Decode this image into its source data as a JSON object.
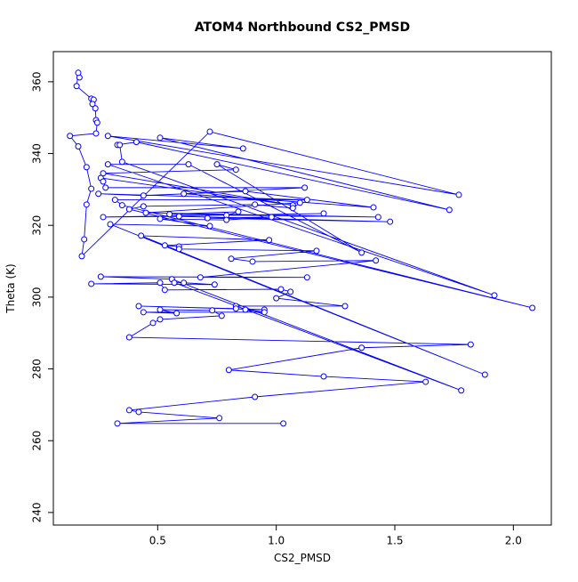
{
  "chart_data": {
    "type": "line",
    "title": "ATOM4 Northbound CS2_PMSD",
    "x_label": "CS2_PMSD",
    "y_label": "Theta (K)",
    "xlim": [
      0.06,
      2.16
    ],
    "ylim": [
      236.5,
      368.4
    ],
    "xticks": [
      0.5,
      {
        "value": 1,
        "label": "1.0"
      },
      1.5,
      {
        "value": 2,
        "label": "2.0"
      }
    ],
    "yticks": [
      240,
      260,
      280,
      300,
      320,
      340,
      360
    ],
    "series": [
      {
        "color": "#0000ff",
        "x": [
          0.17,
          0.165,
          0.158,
          0.22,
          0.23,
          0.225,
          0.237,
          0.24,
          0.245,
          0.24,
          0.13,
          0.165,
          0.2,
          0.22,
          0.2,
          0.19,
          0.18,
          0.72,
          1.77,
          0.29,
          0.86,
          0.51,
          1.73,
          0.41,
          0.33,
          0.34,
          0.35,
          1.92,
          0.29,
          0.63,
          1.36,
          0.75,
          0.83,
          0.27,
          1.07,
          0.26,
          0.27,
          0.28,
          1.12,
          0.61,
          1.41,
          0.87,
          0.44,
          0.25,
          1.13,
          0.32,
          0.35,
          2.08,
          0.38,
          0.44,
          0.91,
          1.07,
          1.1,
          0.45,
          1.43,
          0.55,
          0.84,
          0.79,
          1.2,
          0.27,
          0.59,
          1.48,
          0.71,
          0.98,
          0.79,
          0.51,
          0.72,
          0.3,
          1.88,
          0.43,
          0.97,
          0.53,
          0.59,
          0.59,
          1.17,
          0.81,
          0.9,
          1.42,
          0.68,
          1.13,
          0.26,
          0.56,
          1.78,
          0.57,
          0.61,
          0.74,
          0.22,
          0.51,
          0.53,
          1.02,
          1.06,
          1.0,
          1.29,
          0.83,
          0.83,
          0.42,
          0.95,
          0.87,
          0.95,
          0.44,
          0.58,
          0.51,
          0.73,
          0.77,
          0.51,
          0.48,
          0.38,
          1.82,
          1.36,
          0.8,
          1.2,
          1.63,
          0.91,
          0.38,
          0.42,
          0.76,
          0.33,
          1.03
        ],
        "values": [
          361.2,
          362.5,
          358.8,
          355.3,
          355,
          353.8,
          352.6,
          349.3,
          348.6,
          345.6,
          344.9,
          342,
          336.2,
          330.2,
          325.8,
          316.1,
          311.4,
          346.1,
          328.5,
          344.9,
          341.4,
          344.4,
          324.3,
          343.2,
          342.4,
          342.4,
          337.7,
          300.5,
          337,
          337,
          312.4,
          337,
          335.5,
          334.5,
          325.6,
          333.2,
          332.2,
          330.5,
          330.5,
          328.8,
          325,
          329.5,
          328.3,
          328.8,
          327.1,
          327.1,
          325.6,
          297,
          324.5,
          325.3,
          325.8,
          324.8,
          326.3,
          323.5,
          322.3,
          323.1,
          323.8,
          322.8,
          323.3,
          322.3,
          322.5,
          321,
          322,
          322.3,
          321.5,
          321.8,
          319.8,
          320.3,
          278.4,
          317.1,
          315.9,
          314.4,
          314.1,
          313.4,
          312.9,
          310.7,
          309.9,
          310.2,
          305.5,
          305.5,
          305.7,
          305,
          274,
          304,
          304,
          303.5,
          303.7,
          304,
          302,
          302.2,
          301.5,
          299.7,
          297.5,
          297.5,
          296.8,
          297.5,
          296.5,
          296.5,
          295.8,
          295.8,
          295.5,
          296.5,
          296.3,
          294.8,
          293.8,
          292.8,
          288.8,
          286.8,
          285.9,
          279.7,
          277.9,
          276.4,
          272.2,
          268.5,
          268,
          266.3,
          264.8,
          264.8
        ]
      }
    ]
  }
}
